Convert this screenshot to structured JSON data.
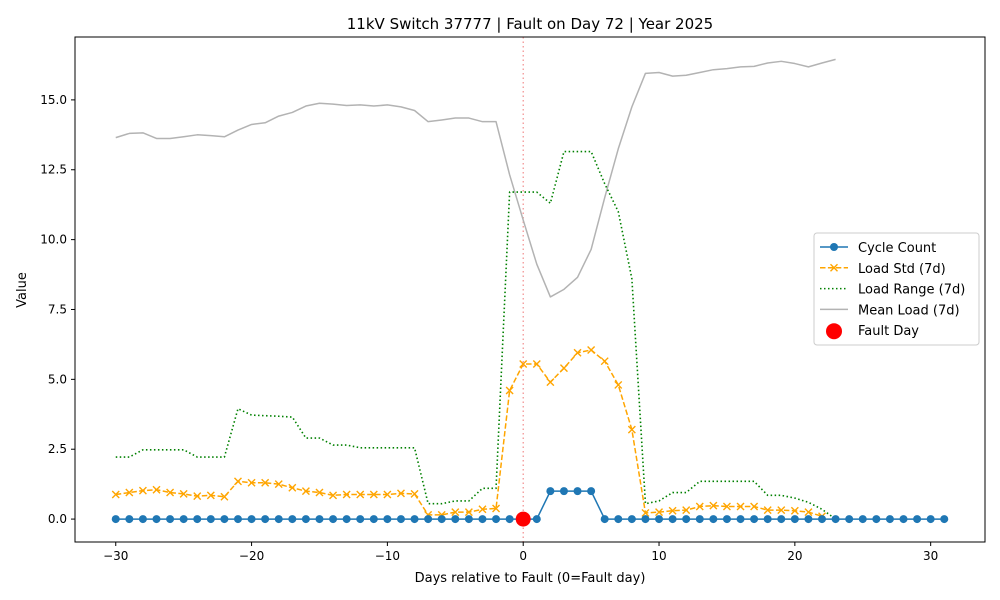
{
  "chart_data": {
    "type": "line",
    "title": "11kV Switch 37777 | Fault on Day 72 | Year 2025",
    "xlabel": "Days relative to Fault (0=Fault day)",
    "ylabel": "Value",
    "xlim": [
      -33,
      34
    ],
    "ylim": [
      -0.82,
      17.25
    ],
    "xticks": [
      -30,
      -20,
      -10,
      0,
      10,
      20,
      30
    ],
    "xtick_labels": [
      "−30",
      "−20",
      "−10",
      "0",
      "10",
      "20",
      "30"
    ],
    "yticks": [
      0,
      2.5,
      5,
      7.5,
      10,
      12.5,
      15
    ],
    "ytick_labels": [
      "0.0",
      "2.5",
      "5.0",
      "7.5",
      "10.0",
      "12.5",
      "15.0"
    ],
    "grid": false,
    "legend_position": "center-right",
    "fault_day_line": 0,
    "series": [
      {
        "name": "Cycle Count",
        "color": "#1f77b4",
        "style": "solid-circle",
        "x": [
          -30,
          -29,
          -28,
          -27,
          -26,
          -25,
          -24,
          -23,
          -22,
          -21,
          -20,
          -19,
          -18,
          -17,
          -16,
          -15,
          -14,
          -13,
          -12,
          -11,
          -10,
          -9,
          -8,
          -7,
          -6,
          -5,
          -4,
          -3,
          -2,
          -1,
          0,
          1,
          2,
          3,
          4,
          5,
          6,
          7,
          8,
          9,
          10,
          11,
          12,
          13,
          14,
          15,
          16,
          17,
          18,
          19,
          20,
          21,
          22,
          23,
          24,
          25,
          26,
          27,
          28,
          29,
          30,
          31
        ],
        "values": [
          0,
          0,
          0,
          0,
          0,
          0,
          0,
          0,
          0,
          0,
          0,
          0,
          0,
          0,
          0,
          0,
          0,
          0,
          0,
          0,
          0,
          0,
          0,
          0,
          0,
          0,
          0,
          0,
          0,
          0,
          0,
          0,
          1,
          1,
          1,
          1,
          0,
          0,
          0,
          0,
          0,
          0,
          0,
          0,
          0,
          0,
          0,
          0,
          0,
          0,
          0,
          0,
          0,
          0,
          0,
          0,
          0,
          0,
          0,
          0,
          0,
          0
        ]
      },
      {
        "name": "Load Std (7d)",
        "color": "#ffa500",
        "style": "dashed-x",
        "x": [
          -30,
          -29,
          -28,
          -27,
          -26,
          -25,
          -24,
          -23,
          -22,
          -21,
          -20,
          -19,
          -18,
          -17,
          -16,
          -15,
          -14,
          -13,
          -12,
          -11,
          -10,
          -9,
          -8,
          -7,
          -6,
          -5,
          -4,
          -3,
          -2,
          -1,
          0,
          1,
          2,
          3,
          4,
          5,
          6,
          7,
          8,
          9,
          10,
          11,
          12,
          13,
          14,
          15,
          16,
          17,
          18,
          19,
          20,
          21,
          22
        ],
        "values": [
          0.88,
          0.95,
          1.02,
          1.05,
          0.95,
          0.9,
          0.82,
          0.85,
          0.8,
          1.35,
          1.3,
          1.3,
          1.25,
          1.12,
          1.0,
          0.95,
          0.85,
          0.88,
          0.88,
          0.88,
          0.88,
          0.92,
          0.9,
          0.15,
          0.15,
          0.25,
          0.25,
          0.35,
          0.38,
          4.6,
          5.55,
          5.55,
          4.9,
          5.4,
          5.95,
          6.05,
          5.65,
          4.8,
          3.2,
          0.22,
          0.25,
          0.3,
          0.32,
          0.45,
          0.48,
          0.45,
          0.45,
          0.45,
          0.32,
          0.32,
          0.3,
          0.25,
          0.1
        ]
      },
      {
        "name": "Load Range (7d)",
        "color": "#008000",
        "style": "dotted",
        "x": [
          -30,
          -29,
          -28,
          -27,
          -26,
          -25,
          -24,
          -23,
          -22,
          -21,
          -20,
          -19,
          -18,
          -17,
          -16,
          -15,
          -14,
          -13,
          -12,
          -11,
          -10,
          -9,
          -8,
          -7,
          -6,
          -5,
          -4,
          -3,
          -2,
          -1,
          0,
          1,
          2,
          3,
          4,
          5,
          6,
          7,
          8,
          9,
          10,
          11,
          12,
          13,
          14,
          15,
          16,
          17,
          18,
          19,
          20,
          21,
          22,
          23
        ],
        "values": [
          2.22,
          2.22,
          2.48,
          2.48,
          2.48,
          2.48,
          2.22,
          2.22,
          2.22,
          3.95,
          3.72,
          3.7,
          3.68,
          3.65,
          2.9,
          2.9,
          2.65,
          2.65,
          2.55,
          2.55,
          2.55,
          2.55,
          2.55,
          0.55,
          0.55,
          0.65,
          0.65,
          1.1,
          1.1,
          11.7,
          11.7,
          11.7,
          11.3,
          13.15,
          13.15,
          13.15,
          12.0,
          11.0,
          8.6,
          0.55,
          0.65,
          0.95,
          0.95,
          1.35,
          1.35,
          1.35,
          1.35,
          1.35,
          0.85,
          0.85,
          0.75,
          0.6,
          0.35,
          0.0
        ]
      },
      {
        "name": "Mean Load (7d)",
        "color": "#b3b3b3",
        "style": "solid",
        "x": [
          -30,
          -29,
          -28,
          -27,
          -26,
          -25,
          -24,
          -23,
          -22,
          -21,
          -20,
          -19,
          -18,
          -17,
          -16,
          -15,
          -14,
          -13,
          -12,
          -11,
          -10,
          -9,
          -8,
          -7,
          -6,
          -5,
          -4,
          -3,
          -2,
          -1,
          0,
          1,
          2,
          3,
          4,
          5,
          6,
          7,
          8,
          9,
          10,
          11,
          12,
          13,
          14,
          15,
          16,
          17,
          18,
          19,
          20,
          21,
          22,
          23
        ],
        "values": [
          13.65,
          13.8,
          13.82,
          13.62,
          13.62,
          13.68,
          13.75,
          13.72,
          13.68,
          13.92,
          14.12,
          14.18,
          14.42,
          14.55,
          14.78,
          14.88,
          14.85,
          14.8,
          14.82,
          14.78,
          14.82,
          14.75,
          14.62,
          14.22,
          14.28,
          14.35,
          14.35,
          14.22,
          14.22,
          12.32,
          10.7,
          9.12,
          7.95,
          8.22,
          8.65,
          9.65,
          11.5,
          13.25,
          14.75,
          15.95,
          15.98,
          15.85,
          15.88,
          15.98,
          16.08,
          16.12,
          16.18,
          16.2,
          16.32,
          16.38,
          16.3,
          16.18,
          16.32,
          16.45
        ]
      }
    ],
    "fault_marker": {
      "x": 0,
      "y": 0,
      "color": "#ff0000"
    },
    "legend": [
      {
        "label": "Cycle Count",
        "color": "#1f77b4",
        "style": "solid-circle"
      },
      {
        "label": "Load Std (7d)",
        "color": "#ffa500",
        "style": "dashed-x"
      },
      {
        "label": "Load Range (7d)",
        "color": "#008000",
        "style": "dotted"
      },
      {
        "label": "Mean Load (7d)",
        "color": "#b3b3b3",
        "style": "solid"
      },
      {
        "label": "Fault Day",
        "color": "#ff0000",
        "style": "big-dot"
      }
    ]
  }
}
